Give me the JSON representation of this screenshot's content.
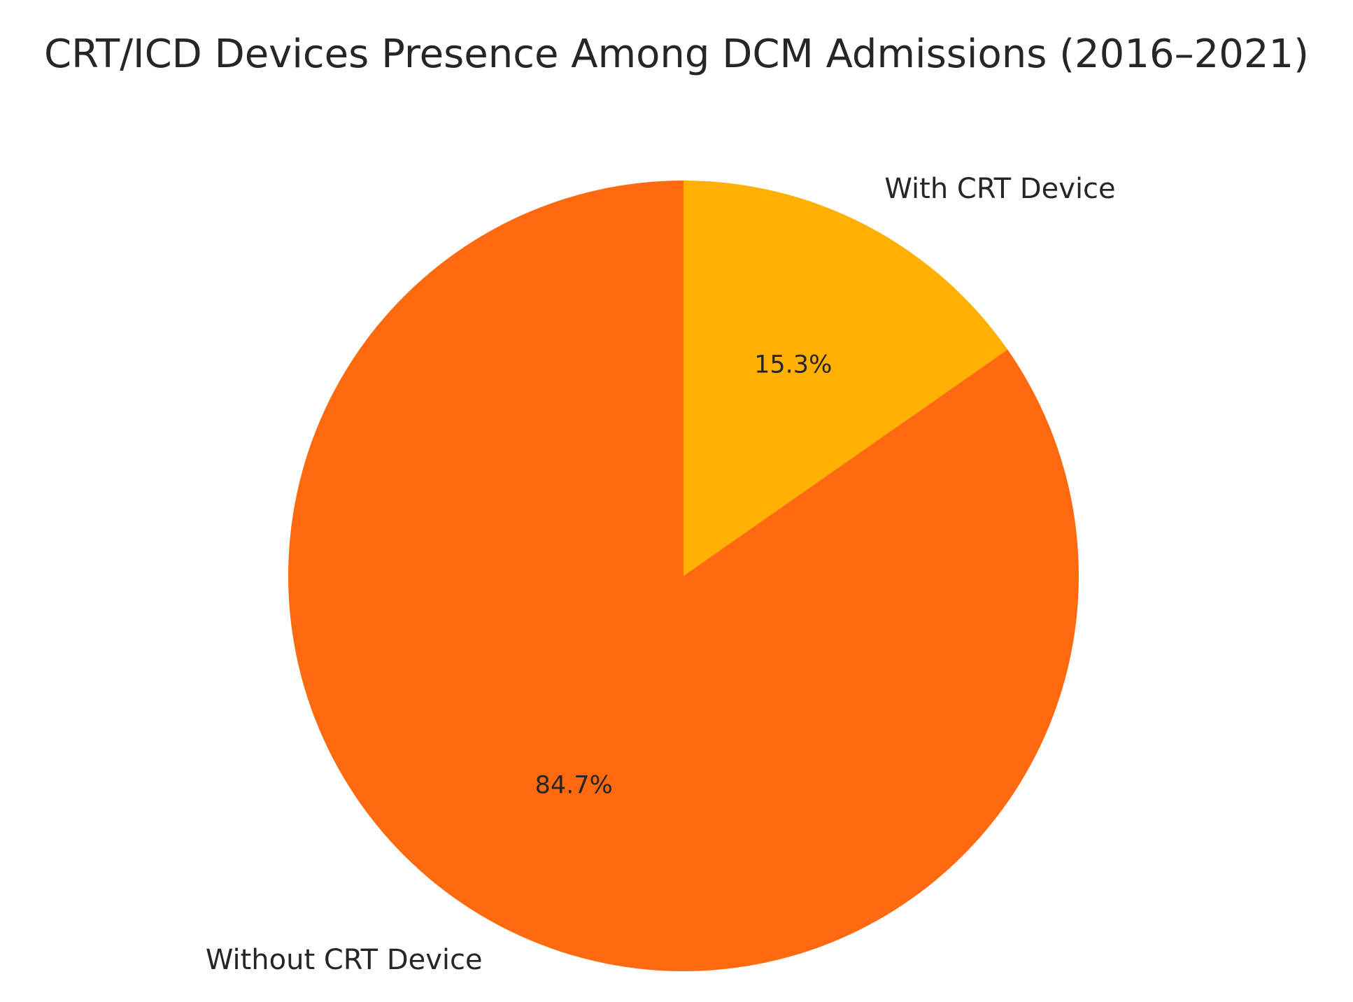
{
  "chart_data": {
    "type": "pie",
    "title": "CRT/ICD Devices Presence Among DCM Admissions (2016–2021)",
    "labels": [
      "With CRT Device",
      "Without CRT Device"
    ],
    "values": [
      15.3,
      84.7
    ],
    "percent_labels": [
      "15.3%",
      "84.7%"
    ],
    "colors": [
      "#FFB000",
      "#FF6A10"
    ],
    "start_angle": "90° (top)",
    "direction": "clockwise",
    "legend": "none"
  }
}
